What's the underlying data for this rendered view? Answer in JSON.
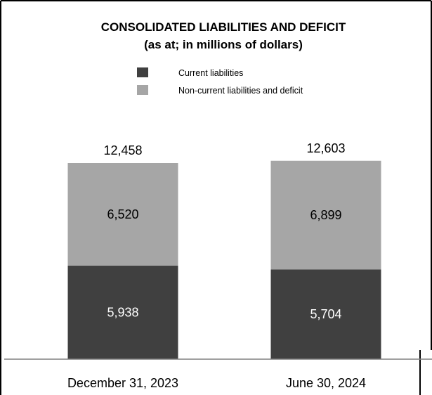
{
  "chart_data": {
    "type": "bar",
    "stacked": true,
    "title": "CONSOLIDATED LIABILITIES AND DEFICIT",
    "subtitle": "(as at; in millions of dollars)",
    "categories": [
      "December 31, 2023",
      "June 30, 2024"
    ],
    "series": [
      {
        "name": "Current liabilities",
        "values": [
          5938,
          5704
        ],
        "labels": [
          "5,938",
          "5,704"
        ],
        "color": "#404040",
        "label_color": "#ffffff"
      },
      {
        "name": "Non-current liabilities and deficit",
        "values": [
          6520,
          6899
        ],
        "labels": [
          "6,520",
          "6,899"
        ],
        "color": "#a6a6a6",
        "label_color": "#000000"
      }
    ],
    "totals": [
      12458,
      12603
    ],
    "total_labels": [
      "12,458",
      "12,603"
    ],
    "ylim": [
      0,
      15000
    ],
    "legend_position": "top",
    "grid": false,
    "axis_color": "#808080"
  }
}
